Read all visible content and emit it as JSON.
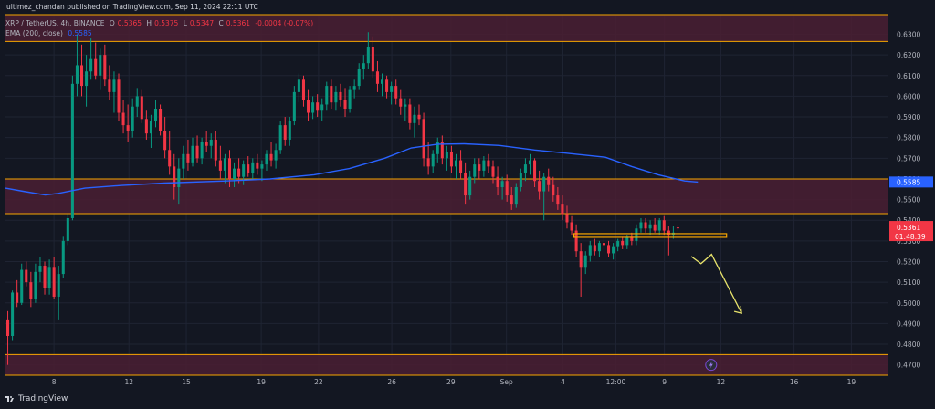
{
  "header": {
    "credit": "ultimez_chandan published on TradingView.com, Sep 11, 2024 22:11 UTC",
    "symbol": "XRP / TetherUS, 4h, BINANCE",
    "o_label": "O",
    "o_value": "0.5365",
    "h_label": "H",
    "h_value": "0.5375",
    "l_label": "L",
    "l_value": "0.5347",
    "c_label": "C",
    "c_value": "0.5361",
    "change": "-0.0004 (-0.07%)",
    "ema_label": "EMA (200, close)",
    "ema_value": "0.5585"
  },
  "footer": {
    "brand": "TradingView"
  },
  "colors": {
    "background": "#131722",
    "up": "#089981",
    "down": "#f23645",
    "ema": "#2962ff",
    "zone_line": "#f7a600",
    "zone_fill": "#4a1f32",
    "arrow": "#e8e36c"
  },
  "chart_data": {
    "type": "candlestick",
    "title": "XRP / TetherUS, 4h, BINANCE",
    "ylim": [
      0.465,
      0.6395
    ],
    "y_ticks": [
      "0.6300",
      "0.6200",
      "0.6100",
      "0.6000",
      "0.5900",
      "0.5800",
      "0.5700",
      "0.5600",
      "0.5500",
      "0.5400",
      "0.5300",
      "0.5200",
      "0.5100",
      "0.5000",
      "0.4900",
      "0.4800",
      "0.4700"
    ],
    "x_ticks": [
      "8",
      "12",
      "15",
      "19",
      "22",
      "26",
      "29",
      "Sep",
      "4",
      "12:00",
      "9",
      "12",
      "16",
      "19"
    ],
    "price_labels": [
      {
        "text": "0.5585",
        "value": 0.5585,
        "kind": "ema"
      },
      {
        "text": "0.5361",
        "value": 0.5361,
        "kind": "last"
      },
      {
        "text": "01:48:39",
        "value": 0.534,
        "kind": "countdown"
      }
    ],
    "zones": [
      {
        "top": 0.6395,
        "bottom": 0.6265,
        "name": "resistance-top"
      },
      {
        "top": 0.56,
        "bottom": 0.5432,
        "name": "resistance-mid"
      },
      {
        "top": 0.475,
        "bottom": 0.465,
        "name": "support-bottom"
      }
    ],
    "highlight_box": {
      "x_start": 0.6445,
      "x_end": 0.8175,
      "top": 0.5335,
      "bottom": 0.5322
    },
    "projection_arrow": [
      [
        0.7775,
        0.5225
      ],
      [
        0.7885,
        0.519
      ],
      [
        0.8005,
        0.5235
      ],
      [
        0.8345,
        0.495
      ]
    ],
    "ema": [
      [
        0.0,
        0.5555
      ],
      [
        0.02,
        0.554
      ],
      [
        0.045,
        0.5522
      ],
      [
        0.06,
        0.553
      ],
      [
        0.09,
        0.5555
      ],
      [
        0.13,
        0.5568
      ],
      [
        0.18,
        0.558
      ],
      [
        0.25,
        0.559
      ],
      [
        0.3,
        0.56
      ],
      [
        0.35,
        0.562
      ],
      [
        0.39,
        0.565
      ],
      [
        0.43,
        0.57
      ],
      [
        0.46,
        0.575
      ],
      [
        0.49,
        0.5768
      ],
      [
        0.52,
        0.577
      ],
      [
        0.56,
        0.5762
      ],
      [
        0.6,
        0.574
      ],
      [
        0.635,
        0.5725
      ],
      [
        0.68,
        0.5705
      ],
      [
        0.71,
        0.566
      ],
      [
        0.74,
        0.562
      ],
      [
        0.77,
        0.559
      ],
      [
        0.785,
        0.5585
      ]
    ],
    "candles": [
      {
        "o": 0.492,
        "h": 0.496,
        "l": 0.47,
        "c": 0.484
      },
      {
        "o": 0.484,
        "h": 0.506,
        "l": 0.482,
        "c": 0.505
      },
      {
        "o": 0.505,
        "h": 0.511,
        "l": 0.498,
        "c": 0.5
      },
      {
        "o": 0.5,
        "h": 0.519,
        "l": 0.499,
        "c": 0.516
      },
      {
        "o": 0.516,
        "h": 0.52,
        "l": 0.508,
        "c": 0.51
      },
      {
        "o": 0.51,
        "h": 0.515,
        "l": 0.498,
        "c": 0.502
      },
      {
        "o": 0.502,
        "h": 0.519,
        "l": 0.5,
        "c": 0.515
      },
      {
        "o": 0.515,
        "h": 0.522,
        "l": 0.51,
        "c": 0.518
      },
      {
        "o": 0.518,
        "h": 0.52,
        "l": 0.504,
        "c": 0.507
      },
      {
        "o": 0.507,
        "h": 0.521,
        "l": 0.504,
        "c": 0.517
      },
      {
        "o": 0.517,
        "h": 0.522,
        "l": 0.502,
        "c": 0.503
      },
      {
        "o": 0.503,
        "h": 0.518,
        "l": 0.492,
        "c": 0.514
      },
      {
        "o": 0.514,
        "h": 0.532,
        "l": 0.512,
        "c": 0.53
      },
      {
        "o": 0.53,
        "h": 0.543,
        "l": 0.528,
        "c": 0.541
      },
      {
        "o": 0.541,
        "h": 0.61,
        "l": 0.54,
        "c": 0.606
      },
      {
        "o": 0.606,
        "h": 0.63,
        "l": 0.6,
        "c": 0.615
      },
      {
        "o": 0.615,
        "h": 0.625,
        "l": 0.6,
        "c": 0.605
      },
      {
        "o": 0.605,
        "h": 0.62,
        "l": 0.595,
        "c": 0.612
      },
      {
        "o": 0.612,
        "h": 0.628,
        "l": 0.608,
        "c": 0.618
      },
      {
        "o": 0.618,
        "h": 0.626,
        "l": 0.608,
        "c": 0.61
      },
      {
        "o": 0.61,
        "h": 0.623,
        "l": 0.603,
        "c": 0.62
      },
      {
        "o": 0.62,
        "h": 0.625,
        "l": 0.605,
        "c": 0.608
      },
      {
        "o": 0.608,
        "h": 0.615,
        "l": 0.598,
        "c": 0.602
      },
      {
        "o": 0.602,
        "h": 0.612,
        "l": 0.592,
        "c": 0.608
      },
      {
        "o": 0.608,
        "h": 0.611,
        "l": 0.588,
        "c": 0.592
      },
      {
        "o": 0.592,
        "h": 0.598,
        "l": 0.582,
        "c": 0.586
      },
      {
        "o": 0.586,
        "h": 0.596,
        "l": 0.578,
        "c": 0.583
      },
      {
        "o": 0.583,
        "h": 0.599,
        "l": 0.58,
        "c": 0.595
      },
      {
        "o": 0.595,
        "h": 0.604,
        "l": 0.59,
        "c": 0.6
      },
      {
        "o": 0.6,
        "h": 0.603,
        "l": 0.587,
        "c": 0.589
      },
      {
        "o": 0.589,
        "h": 0.593,
        "l": 0.579,
        "c": 0.582
      },
      {
        "o": 0.582,
        "h": 0.591,
        "l": 0.575,
        "c": 0.588
      },
      {
        "o": 0.588,
        "h": 0.598,
        "l": 0.585,
        "c": 0.594
      },
      {
        "o": 0.594,
        "h": 0.596,
        "l": 0.581,
        "c": 0.583
      },
      {
        "o": 0.583,
        "h": 0.59,
        "l": 0.57,
        "c": 0.574
      },
      {
        "o": 0.574,
        "h": 0.583,
        "l": 0.562,
        "c": 0.566
      },
      {
        "o": 0.566,
        "h": 0.572,
        "l": 0.55,
        "c": 0.556
      },
      {
        "o": 0.556,
        "h": 0.57,
        "l": 0.548,
        "c": 0.565
      },
      {
        "o": 0.565,
        "h": 0.576,
        "l": 0.56,
        "c": 0.572
      },
      {
        "o": 0.572,
        "h": 0.579,
        "l": 0.564,
        "c": 0.568
      },
      {
        "o": 0.568,
        "h": 0.58,
        "l": 0.566,
        "c": 0.576
      },
      {
        "o": 0.576,
        "h": 0.581,
        "l": 0.568,
        "c": 0.57
      },
      {
        "o": 0.57,
        "h": 0.58,
        "l": 0.567,
        "c": 0.578
      },
      {
        "o": 0.578,
        "h": 0.583,
        "l": 0.573,
        "c": 0.576
      },
      {
        "o": 0.576,
        "h": 0.582,
        "l": 0.57,
        "c": 0.579
      },
      {
        "o": 0.579,
        "h": 0.583,
        "l": 0.566,
        "c": 0.569
      },
      {
        "o": 0.569,
        "h": 0.576,
        "l": 0.56,
        "c": 0.564
      },
      {
        "o": 0.564,
        "h": 0.572,
        "l": 0.558,
        "c": 0.57
      },
      {
        "o": 0.57,
        "h": 0.574,
        "l": 0.556,
        "c": 0.56
      },
      {
        "o": 0.56,
        "h": 0.568,
        "l": 0.556,
        "c": 0.565
      },
      {
        "o": 0.565,
        "h": 0.57,
        "l": 0.558,
        "c": 0.561
      },
      {
        "o": 0.561,
        "h": 0.569,
        "l": 0.557,
        "c": 0.567
      },
      {
        "o": 0.567,
        "h": 0.571,
        "l": 0.561,
        "c": 0.563
      },
      {
        "o": 0.563,
        "h": 0.57,
        "l": 0.56,
        "c": 0.568
      },
      {
        "o": 0.568,
        "h": 0.572,
        "l": 0.562,
        "c": 0.565
      },
      {
        "o": 0.565,
        "h": 0.569,
        "l": 0.559,
        "c": 0.567
      },
      {
        "o": 0.567,
        "h": 0.574,
        "l": 0.564,
        "c": 0.572
      },
      {
        "o": 0.572,
        "h": 0.578,
        "l": 0.566,
        "c": 0.569
      },
      {
        "o": 0.569,
        "h": 0.577,
        "l": 0.565,
        "c": 0.574
      },
      {
        "o": 0.574,
        "h": 0.588,
        "l": 0.572,
        "c": 0.586
      },
      {
        "o": 0.586,
        "h": 0.59,
        "l": 0.576,
        "c": 0.579
      },
      {
        "o": 0.579,
        "h": 0.59,
        "l": 0.576,
        "c": 0.588
      },
      {
        "o": 0.588,
        "h": 0.605,
        "l": 0.586,
        "c": 0.602
      },
      {
        "o": 0.602,
        "h": 0.611,
        "l": 0.597,
        "c": 0.608
      },
      {
        "o": 0.608,
        "h": 0.61,
        "l": 0.595,
        "c": 0.598
      },
      {
        "o": 0.598,
        "h": 0.603,
        "l": 0.588,
        "c": 0.592
      },
      {
        "o": 0.592,
        "h": 0.6,
        "l": 0.589,
        "c": 0.597
      },
      {
        "o": 0.597,
        "h": 0.601,
        "l": 0.59,
        "c": 0.593
      },
      {
        "o": 0.593,
        "h": 0.599,
        "l": 0.588,
        "c": 0.596
      },
      {
        "o": 0.596,
        "h": 0.607,
        "l": 0.593,
        "c": 0.605
      },
      {
        "o": 0.605,
        "h": 0.608,
        "l": 0.594,
        "c": 0.597
      },
      {
        "o": 0.597,
        "h": 0.605,
        "l": 0.593,
        "c": 0.602
      },
      {
        "o": 0.602,
        "h": 0.606,
        "l": 0.595,
        "c": 0.598
      },
      {
        "o": 0.598,
        "h": 0.604,
        "l": 0.59,
        "c": 0.594
      },
      {
        "o": 0.594,
        "h": 0.605,
        "l": 0.592,
        "c": 0.603
      },
      {
        "o": 0.603,
        "h": 0.608,
        "l": 0.599,
        "c": 0.605
      },
      {
        "o": 0.605,
        "h": 0.616,
        "l": 0.603,
        "c": 0.613
      },
      {
        "o": 0.613,
        "h": 0.62,
        "l": 0.608,
        "c": 0.616
      },
      {
        "o": 0.616,
        "h": 0.631,
        "l": 0.613,
        "c": 0.624
      },
      {
        "o": 0.624,
        "h": 0.629,
        "l": 0.609,
        "c": 0.612
      },
      {
        "o": 0.612,
        "h": 0.617,
        "l": 0.602,
        "c": 0.606
      },
      {
        "o": 0.606,
        "h": 0.611,
        "l": 0.6,
        "c": 0.608
      },
      {
        "o": 0.608,
        "h": 0.61,
        "l": 0.599,
        "c": 0.602
      },
      {
        "o": 0.602,
        "h": 0.607,
        "l": 0.596,
        "c": 0.605
      },
      {
        "o": 0.605,
        "h": 0.608,
        "l": 0.596,
        "c": 0.599
      },
      {
        "o": 0.599,
        "h": 0.603,
        "l": 0.591,
        "c": 0.595
      },
      {
        "o": 0.595,
        "h": 0.599,
        "l": 0.588,
        "c": 0.596
      },
      {
        "o": 0.596,
        "h": 0.599,
        "l": 0.584,
        "c": 0.587
      },
      {
        "o": 0.587,
        "h": 0.595,
        "l": 0.58,
        "c": 0.591
      },
      {
        "o": 0.591,
        "h": 0.596,
        "l": 0.586,
        "c": 0.589
      },
      {
        "o": 0.589,
        "h": 0.592,
        "l": 0.566,
        "c": 0.57
      },
      {
        "o": 0.57,
        "h": 0.578,
        "l": 0.562,
        "c": 0.566
      },
      {
        "o": 0.566,
        "h": 0.574,
        "l": 0.563,
        "c": 0.572
      },
      {
        "o": 0.572,
        "h": 0.58,
        "l": 0.568,
        "c": 0.578
      },
      {
        "o": 0.578,
        "h": 0.581,
        "l": 0.567,
        "c": 0.57
      },
      {
        "o": 0.57,
        "h": 0.576,
        "l": 0.564,
        "c": 0.573
      },
      {
        "o": 0.573,
        "h": 0.576,
        "l": 0.563,
        "c": 0.566
      },
      {
        "o": 0.566,
        "h": 0.572,
        "l": 0.56,
        "c": 0.569
      },
      {
        "o": 0.569,
        "h": 0.574,
        "l": 0.56,
        "c": 0.563
      },
      {
        "o": 0.563,
        "h": 0.568,
        "l": 0.548,
        "c": 0.552
      },
      {
        "o": 0.552,
        "h": 0.564,
        "l": 0.55,
        "c": 0.561
      },
      {
        "o": 0.561,
        "h": 0.57,
        "l": 0.558,
        "c": 0.567
      },
      {
        "o": 0.567,
        "h": 0.57,
        "l": 0.56,
        "c": 0.564
      },
      {
        "o": 0.564,
        "h": 0.571,
        "l": 0.561,
        "c": 0.569
      },
      {
        "o": 0.569,
        "h": 0.572,
        "l": 0.563,
        "c": 0.566
      },
      {
        "o": 0.566,
        "h": 0.569,
        "l": 0.558,
        "c": 0.561
      },
      {
        "o": 0.561,
        "h": 0.566,
        "l": 0.552,
        "c": 0.556
      },
      {
        "o": 0.556,
        "h": 0.561,
        "l": 0.55,
        "c": 0.559
      },
      {
        "o": 0.559,
        "h": 0.562,
        "l": 0.549,
        "c": 0.552
      },
      {
        "o": 0.552,
        "h": 0.556,
        "l": 0.545,
        "c": 0.548
      },
      {
        "o": 0.548,
        "h": 0.558,
        "l": 0.546,
        "c": 0.556
      },
      {
        "o": 0.556,
        "h": 0.565,
        "l": 0.554,
        "c": 0.563
      },
      {
        "o": 0.563,
        "h": 0.57,
        "l": 0.559,
        "c": 0.567
      },
      {
        "o": 0.567,
        "h": 0.572,
        "l": 0.562,
        "c": 0.569
      },
      {
        "o": 0.569,
        "h": 0.57,
        "l": 0.556,
        "c": 0.559
      },
      {
        "o": 0.559,
        "h": 0.564,
        "l": 0.55,
        "c": 0.554
      },
      {
        "o": 0.554,
        "h": 0.563,
        "l": 0.54,
        "c": 0.561
      },
      {
        "o": 0.561,
        "h": 0.565,
        "l": 0.554,
        "c": 0.557
      },
      {
        "o": 0.557,
        "h": 0.561,
        "l": 0.549,
        "c": 0.552
      },
      {
        "o": 0.552,
        "h": 0.556,
        "l": 0.545,
        "c": 0.548
      },
      {
        "o": 0.548,
        "h": 0.552,
        "l": 0.54,
        "c": 0.543
      },
      {
        "o": 0.543,
        "h": 0.547,
        "l": 0.536,
        "c": 0.539
      },
      {
        "o": 0.539,
        "h": 0.542,
        "l": 0.533,
        "c": 0.535
      },
      {
        "o": 0.535,
        "h": 0.538,
        "l": 0.522,
        "c": 0.525
      },
      {
        "o": 0.525,
        "h": 0.529,
        "l": 0.503,
        "c": 0.517
      },
      {
        "o": 0.517,
        "h": 0.525,
        "l": 0.514,
        "c": 0.523
      },
      {
        "o": 0.523,
        "h": 0.53,
        "l": 0.52,
        "c": 0.528
      },
      {
        "o": 0.528,
        "h": 0.531,
        "l": 0.523,
        "c": 0.525
      },
      {
        "o": 0.525,
        "h": 0.53,
        "l": 0.522,
        "c": 0.529
      },
      {
        "o": 0.529,
        "h": 0.532,
        "l": 0.526,
        "c": 0.528
      },
      {
        "o": 0.528,
        "h": 0.53,
        "l": 0.522,
        "c": 0.524
      },
      {
        "o": 0.524,
        "h": 0.529,
        "l": 0.521,
        "c": 0.527
      },
      {
        "o": 0.527,
        "h": 0.531,
        "l": 0.525,
        "c": 0.53
      },
      {
        "o": 0.53,
        "h": 0.532,
        "l": 0.526,
        "c": 0.528
      },
      {
        "o": 0.528,
        "h": 0.533,
        "l": 0.526,
        "c": 0.532
      },
      {
        "o": 0.532,
        "h": 0.534,
        "l": 0.528,
        "c": 0.53
      },
      {
        "o": 0.53,
        "h": 0.538,
        "l": 0.528,
        "c": 0.536
      },
      {
        "o": 0.536,
        "h": 0.541,
        "l": 0.534,
        "c": 0.539
      },
      {
        "o": 0.539,
        "h": 0.541,
        "l": 0.534,
        "c": 0.536
      },
      {
        "o": 0.536,
        "h": 0.54,
        "l": 0.533,
        "c": 0.538
      },
      {
        "o": 0.538,
        "h": 0.541,
        "l": 0.534,
        "c": 0.535
      },
      {
        "o": 0.535,
        "h": 0.541,
        "l": 0.533,
        "c": 0.54
      },
      {
        "o": 0.54,
        "h": 0.542,
        "l": 0.533,
        "c": 0.535
      },
      {
        "o": 0.535,
        "h": 0.537,
        "l": 0.523,
        "c": 0.533
      },
      {
        "o": 0.533,
        "h": 0.537,
        "l": 0.531,
        "c": 0.534
      },
      {
        "o": 0.5365,
        "h": 0.5375,
        "l": 0.5347,
        "c": 0.5361
      }
    ]
  }
}
